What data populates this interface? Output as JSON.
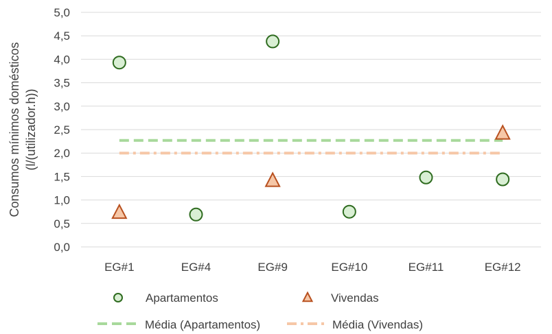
{
  "chart_data": {
    "type": "scatter",
    "title": "",
    "xlabel": "",
    "ylabel_lines": [
      "Consumos mínimos domésticos",
      "(l/(utilizador.h))"
    ],
    "categories": [
      "EG#1",
      "EG#4",
      "EG#9",
      "EG#10",
      "EG#11",
      "EG#12"
    ],
    "yticks": [
      "0,0",
      "0,5",
      "1,0",
      "1,5",
      "2,0",
      "2,5",
      "3,0",
      "3,5",
      "4,0",
      "4,5",
      "5,0"
    ],
    "ylim": [
      0,
      5
    ],
    "grid": true,
    "legend_position": "bottom",
    "series": [
      {
        "name": "Apartamentos",
        "marker": "circle",
        "fill": "#d9efd4",
        "stroke": "#2e6b1f",
        "points": [
          {
            "x": "EG#1",
            "y": 3.93
          },
          {
            "x": "EG#4",
            "y": 0.69
          },
          {
            "x": "EG#9",
            "y": 4.38
          },
          {
            "x": "EG#10",
            "y": 0.75
          },
          {
            "x": "EG#11",
            "y": 1.48
          },
          {
            "x": "EG#12",
            "y": 1.44
          }
        ]
      },
      {
        "name": "Vivendas",
        "marker": "triangle",
        "fill": "#f6c7a7",
        "stroke": "#b8501f",
        "points": [
          {
            "x": "EG#1",
            "y": 0.73
          },
          {
            "x": "EG#9",
            "y": 1.41
          },
          {
            "x": "EG#12",
            "y": 2.42
          }
        ]
      },
      {
        "name": "Média (Apartamentos)",
        "line": "dashed",
        "stroke": "#a8d99b",
        "value": 2.27
      },
      {
        "name": "Média (Vivendas)",
        "line": "dash-dot",
        "stroke": "#f6c7a7",
        "value": 2.0
      }
    ]
  }
}
